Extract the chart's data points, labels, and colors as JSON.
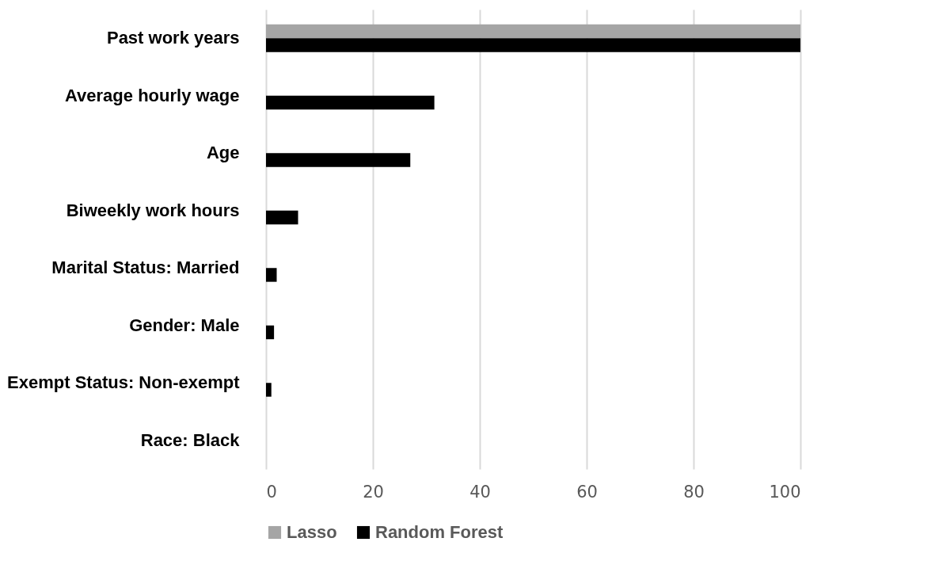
{
  "chart_data": {
    "type": "bar",
    "orientation": "horizontal",
    "categories": [
      "Past work years",
      "Average hourly wage",
      "Age",
      "Biweekly work hours",
      "Marital Status: Married",
      "Gender: Male",
      "Exempt Status: Non-exempt",
      "Race: Black"
    ],
    "series": [
      {
        "name": "Lasso",
        "color": "#a5a5a5",
        "values": [
          100,
          0,
          0,
          0,
          0,
          0,
          0,
          0
        ]
      },
      {
        "name": "Random Forest",
        "color": "#000000",
        "values": [
          100,
          31.5,
          27,
          6,
          2,
          1.5,
          1,
          0
        ]
      }
    ],
    "xlim": [
      0,
      100
    ],
    "xticks": [
      0,
      20,
      40,
      60,
      80,
      100
    ],
    "grid": "x",
    "legend": "bottom"
  }
}
